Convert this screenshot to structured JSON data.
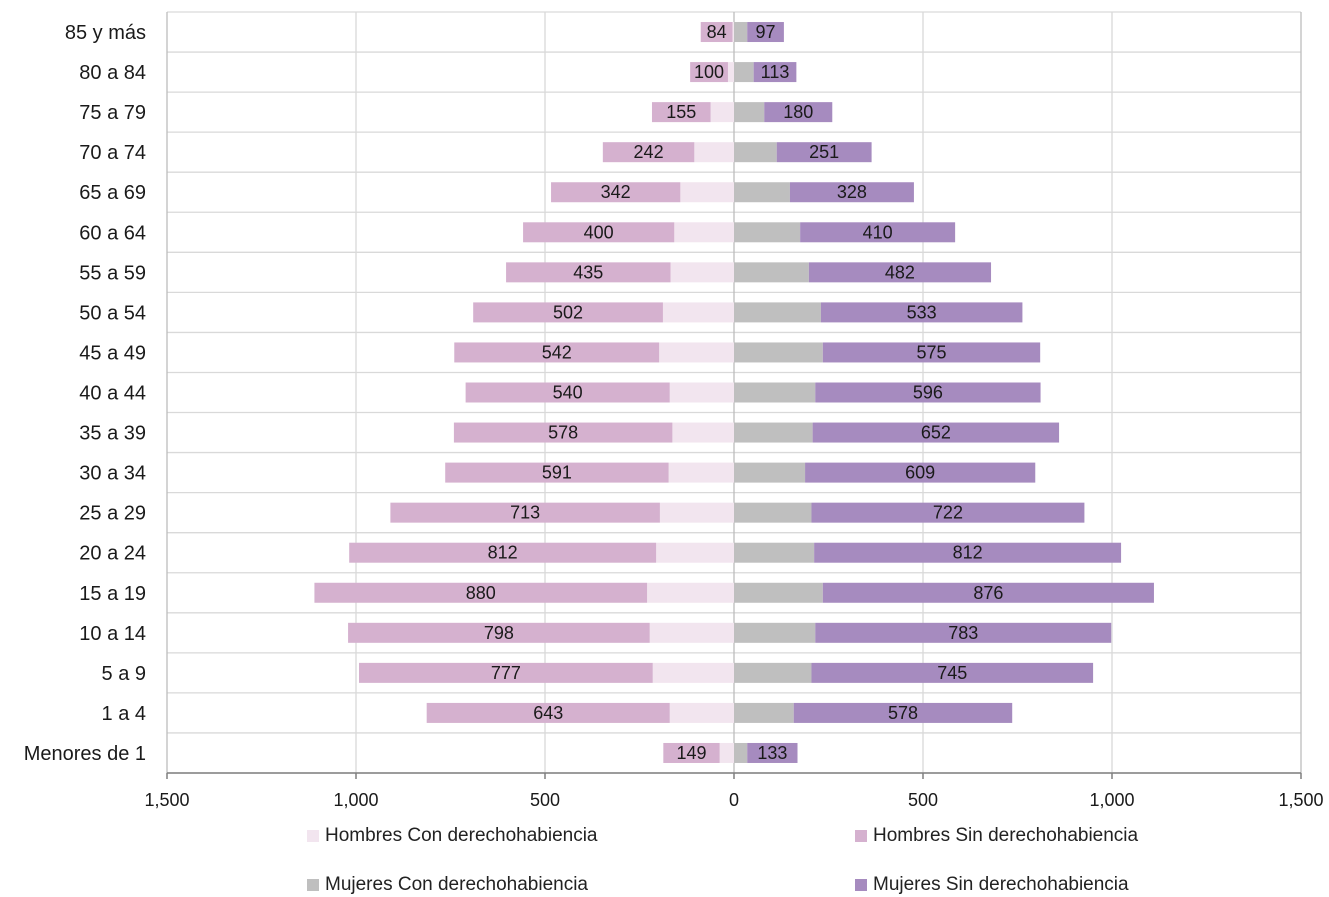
{
  "chart_data": {
    "type": "bar",
    "orientation": "horizontal",
    "layout": "population-pyramid",
    "categories": [
      "85 y más",
      "80 a 84",
      "75 a 79",
      "70 a 74",
      "65 a 69",
      "60 a 64",
      "55 a 59",
      "50 a 54",
      "45 a 49",
      "40 a 44",
      "35 a 39",
      "30 a 34",
      "25 a 29",
      "20 a 24",
      "15 a 19",
      "10 a 14",
      "5 a 9",
      "1 a 4",
      "Menores de 1"
    ],
    "series": [
      {
        "name": "Hombres Con derechohabiencia",
        "side": "left",
        "color": "#f2e5ef",
        "values": [
          4,
          16,
          62,
          105,
          142,
          158,
          168,
          188,
          198,
          170,
          163,
          173,
          196,
          206,
          230,
          223,
          215,
          170,
          38
        ]
      },
      {
        "name": "Hombres Sin derechohabiencia",
        "side": "left",
        "color": "#d5b1cf",
        "values": [
          84,
          100,
          155,
          242,
          342,
          400,
          435,
          502,
          542,
          540,
          578,
          591,
          713,
          812,
          880,
          798,
          777,
          643,
          149
        ]
      },
      {
        "name": "Mujeres Con derechohabiencia",
        "side": "right",
        "color": "#bfbfbf",
        "values": [
          35,
          52,
          80,
          113,
          148,
          175,
          198,
          230,
          235,
          215,
          208,
          188,
          205,
          212,
          235,
          215,
          205,
          158,
          35
        ]
      },
      {
        "name": "Mujeres Sin derechohabiencia",
        "side": "right",
        "color": "#a68bbf",
        "values": [
          97,
          113,
          180,
          251,
          328,
          410,
          482,
          533,
          575,
          596,
          652,
          609,
          722,
          812,
          876,
          783,
          745,
          578,
          133
        ]
      }
    ],
    "data_labels_series": [
      "Hombres Sin derechohabiencia",
      "Mujeres Sin derechohabiencia"
    ],
    "x_ticks": [
      "1,500",
      "1,000",
      "500",
      "0",
      "500",
      "1,000",
      "1,500"
    ],
    "xlim": [
      -1500,
      1500
    ],
    "grid": true,
    "legend_position": "bottom"
  }
}
